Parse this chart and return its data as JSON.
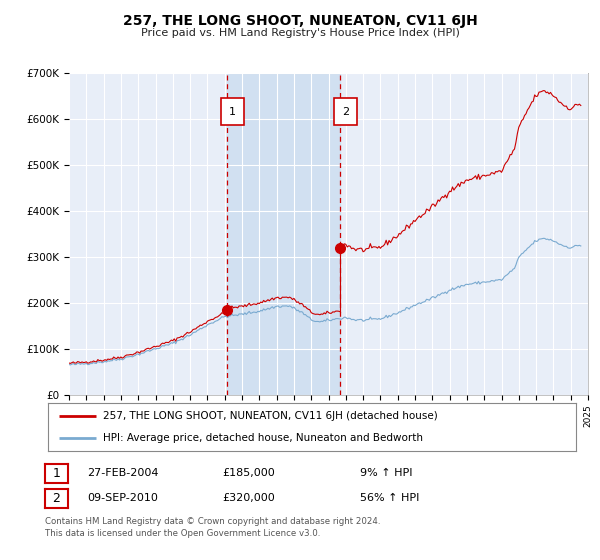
{
  "title": "257, THE LONG SHOOT, NUNEATON, CV11 6JH",
  "subtitle": "Price paid vs. HM Land Registry's House Price Index (HPI)",
  "ylim": [
    0,
    700000
  ],
  "yticks": [
    0,
    100000,
    200000,
    300000,
    400000,
    500000,
    600000,
    700000
  ],
  "ytick_labels": [
    "£0",
    "£100K",
    "£200K",
    "£300K",
    "£400K",
    "£500K",
    "£600K",
    "£700K"
  ],
  "background_color": "#ffffff",
  "plot_bg_color": "#e8eef8",
  "grid_color": "#ffffff",
  "shade_color": "#d0dff5",
  "sale1_date_num": 2004.15,
  "sale1_price": 185000,
  "sale1_label": "27-FEB-2004",
  "sale1_pct": "9%",
  "sale2_date_num": 2010.69,
  "sale2_price": 320000,
  "sale2_label": "09-SEP-2010",
  "sale2_pct": "56%",
  "line_color_red": "#cc0000",
  "line_color_blue": "#7aaad0",
  "shade_alpha": 0.5,
  "legend1_text": "257, THE LONG SHOOT, NUNEATON, CV11 6JH (detached house)",
  "legend2_text": "HPI: Average price, detached house, Nuneaton and Bedworth",
  "footer1": "Contains HM Land Registry data © Crown copyright and database right 2024.",
  "footer2": "This data is licensed under the Open Government Licence v3.0."
}
